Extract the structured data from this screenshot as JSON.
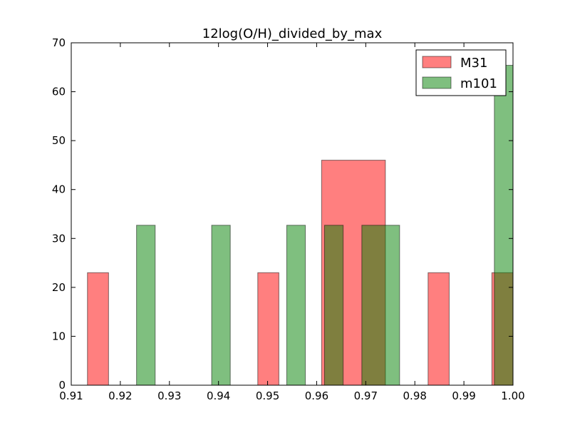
{
  "chart_data": {
    "type": "bar",
    "title": "12log(O/H)_divided_by_max",
    "xlabel": "",
    "ylabel": "",
    "xlim": [
      0.91,
      1.0
    ],
    "ylim": [
      0,
      70
    ],
    "xticks": [
      "0.91",
      "0.92",
      "0.93",
      "0.94",
      "0.95",
      "0.96",
      "0.97",
      "0.98",
      "0.99",
      "1.00"
    ],
    "yticks": [
      "0",
      "10",
      "20",
      "30",
      "40",
      "50",
      "60",
      "70"
    ],
    "grid": false,
    "legend_position": "top-right",
    "series": [
      {
        "name": "M31",
        "color": "#ff0000",
        "opacity": 0.5,
        "bins": [
          {
            "x0": 0.9133,
            "x1": 0.9176,
            "value": 23
          },
          {
            "x0": 0.948,
            "x1": 0.9523,
            "value": 23
          },
          {
            "x0": 0.961,
            "x1": 0.974,
            "value": 46
          },
          {
            "x0": 0.9827,
            "x1": 0.987,
            "value": 23
          },
          {
            "x0": 0.9957,
            "x1": 1.0,
            "value": 23
          }
        ]
      },
      {
        "name": "m101",
        "color": "#008000",
        "opacity": 0.5,
        "bins": [
          {
            "x0": 0.9233,
            "x1": 0.9271,
            "value": 32.7
          },
          {
            "x0": 0.9386,
            "x1": 0.9424,
            "value": 32.7
          },
          {
            "x0": 0.9539,
            "x1": 0.9577,
            "value": 32.7
          },
          {
            "x0": 0.9616,
            "x1": 0.9654,
            "value": 32.7
          },
          {
            "x0": 0.9692,
            "x1": 0.9769,
            "value": 32.7
          },
          {
            "x0": 0.9962,
            "x1": 1.0,
            "value": 65.4
          }
        ]
      }
    ]
  }
}
